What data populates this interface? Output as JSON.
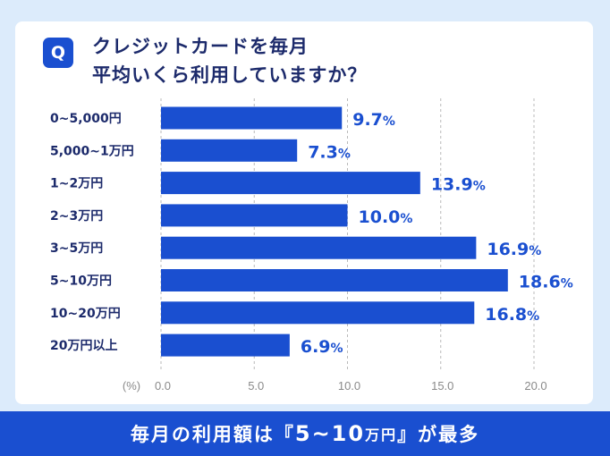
{
  "question": {
    "badge": "Q",
    "line1": "クレジットカードを毎月",
    "line2": "平均いくら利用していますか？"
  },
  "chart_data": {
    "type": "bar",
    "orientation": "horizontal",
    "categories": [
      "0~5,000円",
      "5,000~1万円",
      "1~2万円",
      "2~3万円",
      "3~5万円",
      "5~10万円",
      "10~20万円",
      "20万円以上"
    ],
    "values": [
      9.7,
      7.3,
      13.9,
      10.0,
      16.9,
      18.6,
      16.8,
      6.9
    ],
    "value_labels": [
      "9.7",
      "7.3",
      "13.9",
      "10.0",
      "16.9",
      "18.6",
      "16.8",
      "6.9"
    ],
    "value_suffix": "%",
    "xlabel": "(%)",
    "xlim": [
      0,
      20
    ],
    "xticks": [
      "0.0",
      "5.0",
      "10.0",
      "15.0",
      "20.0"
    ],
    "bar_color": "#1a4fd0",
    "label_color": "#1c2a6b",
    "grid": "dashed vertical"
  },
  "footer": {
    "prefix": "毎月の利用額は『",
    "highlight": "5~10",
    "unit": "万円",
    "suffix": "』が最多"
  }
}
